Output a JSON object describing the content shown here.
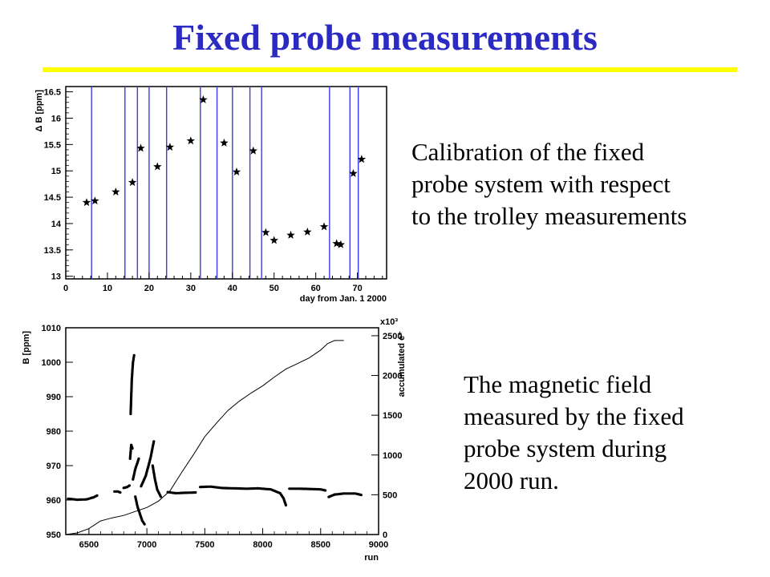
{
  "slide": {
    "title": "Fixed probe measurements",
    "accent_color": "#ffff00",
    "title_color": "#2b2bc4"
  },
  "captions": {
    "top": [
      "Calibration of the fixed",
      "probe system with respect",
      "to the trolley measurements"
    ],
    "bottom": [
      "The magnetic field",
      "measured by the fixed",
      "probe system during",
      "2000 run."
    ]
  },
  "chart_data": [
    {
      "type": "scatter",
      "title": "",
      "xlabel": "day from Jan. 1 2000",
      "ylabel": "Δ B [ppm]",
      "xlim": [
        0,
        77
      ],
      "ylim": [
        12.95,
        16.6
      ],
      "xticks": [
        0,
        10,
        20,
        30,
        40,
        50,
        60,
        70
      ],
      "yticks": [
        13,
        13.5,
        14,
        14.5,
        15,
        15.5,
        16,
        16.5
      ],
      "grid": false,
      "marker": "star",
      "vertical_lines": [
        6.2,
        14.2,
        17.2,
        20,
        24.2,
        32.3,
        36.3,
        40,
        44.2,
        47,
        63.3,
        68.2,
        70.2
      ],
      "line_color": "#3a3aee",
      "points": [
        {
          "x": 5,
          "y": 14.4
        },
        {
          "x": 7,
          "y": 14.43
        },
        {
          "x": 12,
          "y": 14.6
        },
        {
          "x": 16,
          "y": 14.78
        },
        {
          "x": 18,
          "y": 15.43
        },
        {
          "x": 22,
          "y": 15.08
        },
        {
          "x": 25,
          "y": 15.45
        },
        {
          "x": 30,
          "y": 15.57
        },
        {
          "x": 33,
          "y": 16.35
        },
        {
          "x": 38,
          "y": 15.53
        },
        {
          "x": 41,
          "y": 14.98
        },
        {
          "x": 45,
          "y": 15.38
        },
        {
          "x": 48,
          "y": 13.83
        },
        {
          "x": 50,
          "y": 13.68
        },
        {
          "x": 54,
          "y": 13.78
        },
        {
          "x": 58,
          "y": 13.84
        },
        {
          "x": 62,
          "y": 13.94
        },
        {
          "x": 65,
          "y": 13.62
        },
        {
          "x": 66,
          "y": 13.6
        },
        {
          "x": 69,
          "y": 14.95
        },
        {
          "x": 71,
          "y": 15.22
        }
      ]
    },
    {
      "type": "scatter",
      "title": "",
      "xlabel": "run",
      "ylabel": "B [ppm]",
      "y2label": "accumulated e⁺",
      "y2_multiplier_label": "x10³",
      "xlim": [
        6300,
        9000
      ],
      "ylim": [
        950,
        1010
      ],
      "y2lim": [
        0,
        2600
      ],
      "xticks": [
        6500,
        7000,
        7500,
        8000,
        8500,
        9000
      ],
      "yticks": [
        950,
        960,
        970,
        980,
        990,
        1000,
        1010
      ],
      "y2ticks": [
        0,
        500,
        1000,
        1500,
        2000,
        2500
      ],
      "grid": false,
      "field_segments": [
        {
          "name": "",
          "x": [
            6320,
            6400,
            6480,
            6540,
            6570
          ],
          "y": [
            960.4,
            960.1,
            960.2,
            960.8,
            961.3
          ]
        },
        {
          "name": "",
          "x": [
            6720,
            6750,
            6770
          ],
          "y": [
            962.5,
            962.5,
            962.2
          ]
        },
        {
          "name": "",
          "x": [
            6800,
            6830,
            6850
          ],
          "y": [
            963.5,
            963.8,
            964.2
          ]
        },
        {
          "name": "",
          "x": [
            6860,
            6870,
            6880,
            6890
          ],
          "y": [
            985,
            995,
            1000,
            1002
          ]
        },
        {
          "name": "",
          "x": [
            6855,
            6865,
            6875
          ],
          "y": [
            972,
            976,
            975
          ]
        },
        {
          "name": "",
          "x": [
            6880,
            6900,
            6930
          ],
          "y": [
            966,
            969,
            972
          ]
        },
        {
          "name": "",
          "x": [
            6900,
            6920,
            6940,
            6960,
            6980
          ],
          "y": [
            961,
            958,
            956,
            954,
            953
          ]
        },
        {
          "name": "",
          "x": [
            6950,
            6990,
            7030,
            7060
          ],
          "y": [
            964,
            967,
            972,
            977
          ]
        },
        {
          "name": "",
          "x": [
            7050,
            7070,
            7090,
            7120
          ],
          "y": [
            970,
            966,
            963,
            961
          ]
        },
        {
          "name": "",
          "x": [
            7180,
            7250,
            7320,
            7420
          ],
          "y": [
            962.3,
            962.0,
            962.1,
            962.2
          ]
        },
        {
          "name": "",
          "x": [
            7460,
            7550,
            7650,
            7760,
            7860,
            7960,
            8070,
            8150,
            8180,
            8200
          ],
          "y": [
            963.8,
            963.9,
            963.5,
            963.4,
            963.3,
            963.4,
            963.1,
            962.0,
            960.5,
            958.5
          ]
        },
        {
          "name": "",
          "x": [
            8230,
            8320,
            8420,
            8500,
            8540
          ],
          "y": [
            963.3,
            963.3,
            963.2,
            963.1,
            962.8
          ]
        },
        {
          "name": "",
          "x": [
            8570,
            8620,
            8700,
            8800,
            8850
          ],
          "y": [
            960.9,
            961.6,
            961.9,
            961.9,
            961.5
          ]
        }
      ],
      "accumulated": {
        "name": "",
        "x": [
          6300,
          6400,
          6500,
          6600,
          6700,
          6800,
          6900,
          7000,
          7100,
          7200,
          7300,
          7400,
          7500,
          7600,
          7700,
          7800,
          7900,
          8000,
          8100,
          8200,
          8300,
          8400,
          8500,
          8560,
          8620,
          8660,
          8700
        ],
        "y": [
          0,
          20,
          75,
          170,
          210,
          240,
          290,
          340,
          420,
          550,
          780,
          1000,
          1230,
          1400,
          1560,
          1680,
          1780,
          1870,
          1980,
          2080,
          2150,
          2220,
          2320,
          2400,
          2440,
          2440,
          2440
        ]
      }
    }
  ]
}
